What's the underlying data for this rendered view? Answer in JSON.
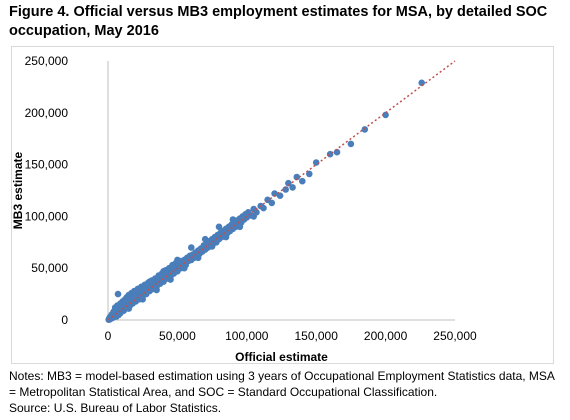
{
  "figure": {
    "title": "Figure 4. Official versus MB3 employment estimates for MSA, by detailed SOC occupation, May 2016",
    "notes": "Notes: MB3 = model-based estimation using 3 years of Occupational Employment Statistics data, MSA = Metropolitan Statistical Area, and SOC = Standard Occupational Classification.",
    "source": "Source: U.S. Bureau of Labor Statistics."
  },
  "colors": {
    "points": "#4a7ebb",
    "reference_line": "#c0504d",
    "axis": "#bfbfbf"
  },
  "chart_data": {
    "type": "scatter",
    "xlabel": "Official estimate",
    "ylabel": "MB3 estimate",
    "xlim": [
      0,
      250000
    ],
    "ylim": [
      0,
      250000
    ],
    "xticks": [
      0,
      50000,
      100000,
      150000,
      200000,
      250000
    ],
    "yticks": [
      0,
      50000,
      100000,
      150000,
      200000,
      250000
    ],
    "xtick_labels": [
      "0",
      "50,000",
      "100,000",
      "150,000",
      "200,000",
      "250,000"
    ],
    "ytick_labels": [
      "0",
      "50,000",
      "100,000",
      "150,000",
      "200,000",
      "250,000"
    ],
    "grid": false,
    "reference_line": {
      "style": "dotted",
      "from": [
        0,
        0
      ],
      "to": [
        250000,
        250000
      ]
    },
    "points": [
      [
        500,
        300
      ],
      [
        800,
        1200
      ],
      [
        1000,
        500
      ],
      [
        1200,
        2500
      ],
      [
        1500,
        800
      ],
      [
        1800,
        3000
      ],
      [
        2000,
        1500
      ],
      [
        2200,
        4000
      ],
      [
        2500,
        2000
      ],
      [
        2800,
        5500
      ],
      [
        3000,
        1800
      ],
      [
        3200,
        3500
      ],
      [
        3500,
        6000
      ],
      [
        3800,
        2500
      ],
      [
        4000,
        8000
      ],
      [
        4200,
        4500
      ],
      [
        4500,
        3000
      ],
      [
        4800,
        9000
      ],
      [
        5000,
        5500
      ],
      [
        5200,
        12000
      ],
      [
        5500,
        4000
      ],
      [
        5800,
        7000
      ],
      [
        6000,
        10000
      ],
      [
        6200,
        3500
      ],
      [
        6500,
        8500
      ],
      [
        6800,
        14000
      ],
      [
        7000,
        6000
      ],
      [
        7200,
        25000
      ],
      [
        7500,
        9500
      ],
      [
        7800,
        5000
      ],
      [
        8000,
        11000
      ],
      [
        8200,
        7500
      ],
      [
        8500,
        13000
      ],
      [
        8800,
        6500
      ],
      [
        9000,
        16000
      ],
      [
        9200,
        9000
      ],
      [
        9500,
        12000
      ],
      [
        9800,
        8000
      ],
      [
        10000,
        14500
      ],
      [
        10300,
        10000
      ],
      [
        10600,
        18000
      ],
      [
        11000,
        12000
      ],
      [
        11300,
        9000
      ],
      [
        11600,
        15000
      ],
      [
        12000,
        13000
      ],
      [
        12300,
        20000
      ],
      [
        12600,
        11000
      ],
      [
        13000,
        16000
      ],
      [
        13300,
        14000
      ],
      [
        13600,
        22000
      ],
      [
        14000,
        12500
      ],
      [
        14300,
        17000
      ],
      [
        14700,
        15000
      ],
      [
        15000,
        24000
      ],
      [
        15400,
        18000
      ],
      [
        15800,
        14000
      ],
      [
        16200,
        20000
      ],
      [
        16600,
        17000
      ],
      [
        17000,
        26000
      ],
      [
        17400,
        19000
      ],
      [
        17800,
        16000
      ],
      [
        18200,
        22000
      ],
      [
        18600,
        20000
      ],
      [
        19000,
        28000
      ],
      [
        19500,
        21000
      ],
      [
        20000,
        18000
      ],
      [
        20500,
        24000
      ],
      [
        21000,
        22000
      ],
      [
        21500,
        30000
      ],
      [
        22000,
        25000
      ],
      [
        22500,
        20000
      ],
      [
        23000,
        27000
      ],
      [
        23500,
        24000
      ],
      [
        24000,
        32000
      ],
      [
        24500,
        26000
      ],
      [
        25000,
        23000
      ],
      [
        25500,
        29000
      ],
      [
        26000,
        27000
      ],
      [
        26500,
        34000
      ],
      [
        27000,
        30000
      ],
      [
        27500,
        25000
      ],
      [
        28000,
        31000
      ],
      [
        28500,
        29000
      ],
      [
        29000,
        36000
      ],
      [
        29500,
        32000
      ],
      [
        30000,
        28000
      ],
      [
        30500,
        33000
      ],
      [
        31000,
        31000
      ],
      [
        31500,
        38000
      ],
      [
        32000,
        34000
      ],
      [
        32500,
        30000
      ],
      [
        33000,
        36000
      ],
      [
        33500,
        33000
      ],
      [
        34000,
        40000
      ],
      [
        34500,
        35000
      ],
      [
        35000,
        32000
      ],
      [
        35500,
        38000
      ],
      [
        36000,
        36000
      ],
      [
        36500,
        43000
      ],
      [
        37000,
        39000
      ],
      [
        37500,
        35000
      ],
      [
        38000,
        41000
      ],
      [
        38500,
        38000
      ],
      [
        39000,
        45000
      ],
      [
        39500,
        42000
      ],
      [
        40000,
        37000
      ],
      [
        40500,
        43000
      ],
      [
        41000,
        41000
      ],
      [
        41500,
        48000
      ],
      [
        42000,
        44000
      ],
      [
        42500,
        40000
      ],
      [
        43000,
        46000
      ],
      [
        43500,
        43000
      ],
      [
        44000,
        50000
      ],
      [
        44500,
        47000
      ],
      [
        45000,
        42000
      ],
      [
        45500,
        48000
      ],
      [
        46000,
        46000
      ],
      [
        46500,
        53000
      ],
      [
        47000,
        49000
      ],
      [
        47500,
        45000
      ],
      [
        48000,
        51000
      ],
      [
        48500,
        48000
      ],
      [
        49000,
        55000
      ],
      [
        49500,
        52000
      ],
      [
        50000,
        47000
      ],
      [
        50500,
        53000
      ],
      [
        51000,
        51000
      ],
      [
        51500,
        57000
      ],
      [
        52000,
        54000
      ],
      [
        52500,
        50000
      ],
      [
        53000,
        56000
      ],
      [
        54000,
        55000
      ],
      [
        55000,
        58000
      ],
      [
        56000,
        53000
      ],
      [
        57000,
        60000
      ],
      [
        58000,
        57000
      ],
      [
        59000,
        62000
      ],
      [
        60000,
        58000
      ],
      [
        61000,
        63000
      ],
      [
        62000,
        60000
      ],
      [
        63000,
        65000
      ],
      [
        64000,
        62000
      ],
      [
        65000,
        67000
      ],
      [
        66000,
        64000
      ],
      [
        67000,
        69000
      ],
      [
        68000,
        66000
      ],
      [
        69000,
        72000
      ],
      [
        70000,
        68000
      ],
      [
        71000,
        74000
      ],
      [
        72000,
        70000
      ],
      [
        73000,
        76000
      ],
      [
        74000,
        72000
      ],
      [
        75000,
        78000
      ],
      [
        76000,
        74000
      ],
      [
        77000,
        80000
      ],
      [
        78000,
        75000
      ],
      [
        79000,
        82000
      ],
      [
        80000,
        78000
      ],
      [
        81000,
        84000
      ],
      [
        82000,
        80000
      ],
      [
        83000,
        86000
      ],
      [
        84000,
        82000
      ],
      [
        85000,
        88000
      ],
      [
        86000,
        84000
      ],
      [
        87000,
        90000
      ],
      [
        88000,
        86000
      ],
      [
        89000,
        92000
      ],
      [
        90000,
        88000
      ],
      [
        91000,
        94000
      ],
      [
        92000,
        90000
      ],
      [
        93000,
        96000
      ],
      [
        94000,
        92000
      ],
      [
        95000,
        98000
      ],
      [
        96000,
        94000
      ],
      [
        97000,
        100000
      ],
      [
        98000,
        97000
      ],
      [
        99000,
        102000
      ],
      [
        100000,
        99000
      ],
      [
        101000,
        104000
      ],
      [
        103000,
        101000
      ],
      [
        105000,
        107000
      ],
      [
        107000,
        104000
      ],
      [
        110000,
        110000
      ],
      [
        112000,
        108000
      ],
      [
        115000,
        116000
      ],
      [
        118000,
        113000
      ],
      [
        120000,
        122000
      ],
      [
        124000,
        120000
      ],
      [
        128000,
        126000
      ],
      [
        130000,
        132000
      ],
      [
        133000,
        128000
      ],
      [
        136000,
        138000
      ],
      [
        140000,
        134000
      ],
      [
        145000,
        141000
      ],
      [
        150000,
        152000
      ],
      [
        160000,
        160000
      ],
      [
        165000,
        162000
      ],
      [
        175000,
        170000
      ],
      [
        185000,
        184000
      ],
      [
        200000,
        198000
      ],
      [
        226000,
        229000
      ],
      [
        20000,
        26000
      ],
      [
        30000,
        37000
      ],
      [
        40000,
        47000
      ],
      [
        50000,
        58000
      ],
      [
        60000,
        70000
      ],
      [
        70000,
        78000
      ],
      [
        80000,
        90000
      ],
      [
        90000,
        97000
      ],
      [
        55000,
        50000
      ],
      [
        65000,
        60000
      ],
      [
        75000,
        71000
      ],
      [
        85000,
        80000
      ],
      [
        95000,
        90000
      ],
      [
        105000,
        100000
      ],
      [
        15000,
        11000
      ],
      [
        25000,
        20000
      ],
      [
        35000,
        29000
      ],
      [
        45000,
        39000
      ]
    ]
  }
}
